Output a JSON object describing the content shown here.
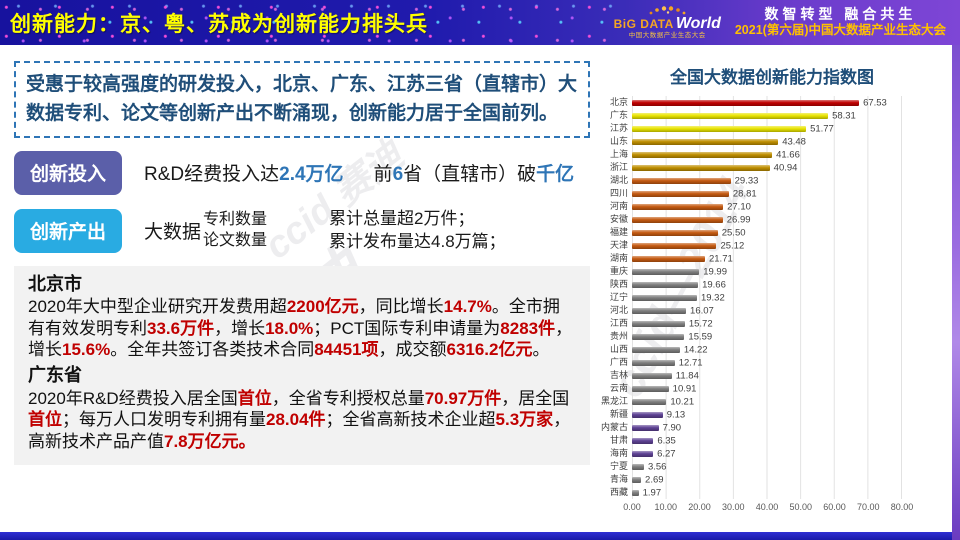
{
  "header": {
    "title": "创新能力：京、粤、苏成为创新能力排头兵",
    "logo": {
      "big": "BiG DATA",
      "world": "World",
      "subtitle": "中国大数据产业生态大会"
    },
    "slogan": "数智转型 融合共生",
    "event": "2021(第六届)中国大数据产业生态大会"
  },
  "summary": "受惠于较高强度的研发投入，北京、广东、江苏三省（直辖市）大数据专利、论文等创新产出不断涌现，创新能力居于全国前列。",
  "investment": {
    "label": "创新投入",
    "text1": [
      [
        "R&D经费投入达",
        ""
      ],
      [
        "2.4万亿",
        "hl"
      ]
    ],
    "text2": [
      [
        "前",
        ""
      ],
      [
        "6",
        "hl"
      ],
      [
        "省（直辖市）破",
        ""
      ],
      [
        "千亿",
        "hl"
      ]
    ]
  },
  "output": {
    "label": "创新产出",
    "prefix": "大数据",
    "items": [
      "专利数量",
      "论文数量"
    ],
    "results": [
      "累计总量超2万件；",
      "累计发布量达4.8万篇；"
    ]
  },
  "regions": [
    {
      "name": "北京市",
      "body": [
        [
          "2020年大中型企业研究开发费用超",
          ""
        ],
        [
          "2200亿元",
          "r"
        ],
        [
          "，同比增长",
          ""
        ],
        [
          "14.7%",
          "r"
        ],
        [
          "。全市拥有有效发明专利",
          ""
        ],
        [
          "33.6万件",
          "r"
        ],
        [
          "，增长",
          ""
        ],
        [
          "18.0%",
          "r"
        ],
        [
          "；PCT国际专利申请量为",
          ""
        ],
        [
          "8283件",
          "r"
        ],
        [
          "，增长",
          ""
        ],
        [
          "15.6%",
          "r"
        ],
        [
          "。全年共签订各类技术合同",
          ""
        ],
        [
          "84451项",
          "r"
        ],
        [
          "，成交额",
          ""
        ],
        [
          "6316.2亿元",
          "r"
        ],
        [
          "。",
          ""
        ]
      ]
    },
    {
      "name": "广东省",
      "body": [
        [
          "2020年R&D经费投入居全国",
          ""
        ],
        [
          "首位",
          "r"
        ],
        [
          "，全省专利授权总量",
          ""
        ],
        [
          "70.97万件",
          "r"
        ],
        [
          "，居全国",
          ""
        ],
        [
          "首位",
          "r"
        ],
        [
          "；每万人口发明专利拥有量",
          ""
        ],
        [
          "28.04件",
          "r"
        ],
        [
          "；全省高新技术企业超",
          ""
        ],
        [
          "5.3万家",
          "r"
        ],
        [
          "，高新技术产品产值",
          ""
        ],
        [
          "7.8万亿元。",
          "r"
        ]
      ]
    }
  ],
  "watermarks": [
    "ccid 赛迪",
    "ccid—2014",
    "ccid 赛迪"
  ],
  "chart_data": {
    "type": "bar",
    "orientation": "horizontal",
    "title": "全国大数据创新能力指数图",
    "categories": [
      "北京",
      "广东",
      "江苏",
      "山东",
      "上海",
      "浙江",
      "湖北",
      "四川",
      "河南",
      "安徽",
      "福建",
      "天津",
      "湖南",
      "重庆",
      "陕西",
      "辽宁",
      "河北",
      "江西",
      "贵州",
      "山西",
      "广西",
      "吉林",
      "云南",
      "黑龙江",
      "新疆",
      "内蒙古",
      "甘肃",
      "海南",
      "宁夏",
      "青海",
      "西藏"
    ],
    "values": [
      67.53,
      58.31,
      51.77,
      43.48,
      41.66,
      40.94,
      29.33,
      28.81,
      27.1,
      26.99,
      25.5,
      25.12,
      21.71,
      19.99,
      19.66,
      19.32,
      16.07,
      15.72,
      15.59,
      14.22,
      12.71,
      11.84,
      10.91,
      10.21,
      9.13,
      7.9,
      6.35,
      6.27,
      3.56,
      2.69,
      1.97
    ],
    "value_labels": [
      "67.53",
      "58.31",
      "51.77",
      "43.48",
      "41.66",
      "40.94",
      "29.33",
      "28.81",
      "27.10",
      "26.99",
      "25.50",
      "25.12",
      "21.71",
      "19.99",
      "19.66",
      "19.32",
      "16.07",
      "15.72",
      "15.59",
      "14.22",
      "12.71",
      "11.84",
      "10.91",
      "10.21",
      "9.13",
      "7.90",
      "6.35",
      "6.27",
      "3.56",
      "2.69",
      "1.97"
    ],
    "bar_colors": [
      "#C00000",
      "#E9E400",
      "#E9E400",
      "#BF8F00",
      "#BF8F00",
      "#BF8F00",
      "#C55A11",
      "#C55A11",
      "#C55A11",
      "#C55A11",
      "#C55A11",
      "#C55A11",
      "#C55A11",
      "#7F7F7F",
      "#7F7F7F",
      "#7F7F7F",
      "#7F7F7F",
      "#7F7F7F",
      "#7F7F7F",
      "#7F7F7F",
      "#7F7F7F",
      "#7F7F7F",
      "#7F7F7F",
      "#7F7F7F",
      "#5E4294",
      "#5E4294",
      "#5E4294",
      "#5E4294",
      "#7F7F7F",
      "#7F7F7F",
      "#7F7F7F"
    ],
    "xlim": [
      0,
      80
    ],
    "x_ticks": [
      "0.00",
      "10.00",
      "20.00",
      "30.00",
      "40.00",
      "50.00",
      "60.00",
      "70.00",
      "80.00"
    ],
    "grid": true,
    "legend": "none"
  }
}
